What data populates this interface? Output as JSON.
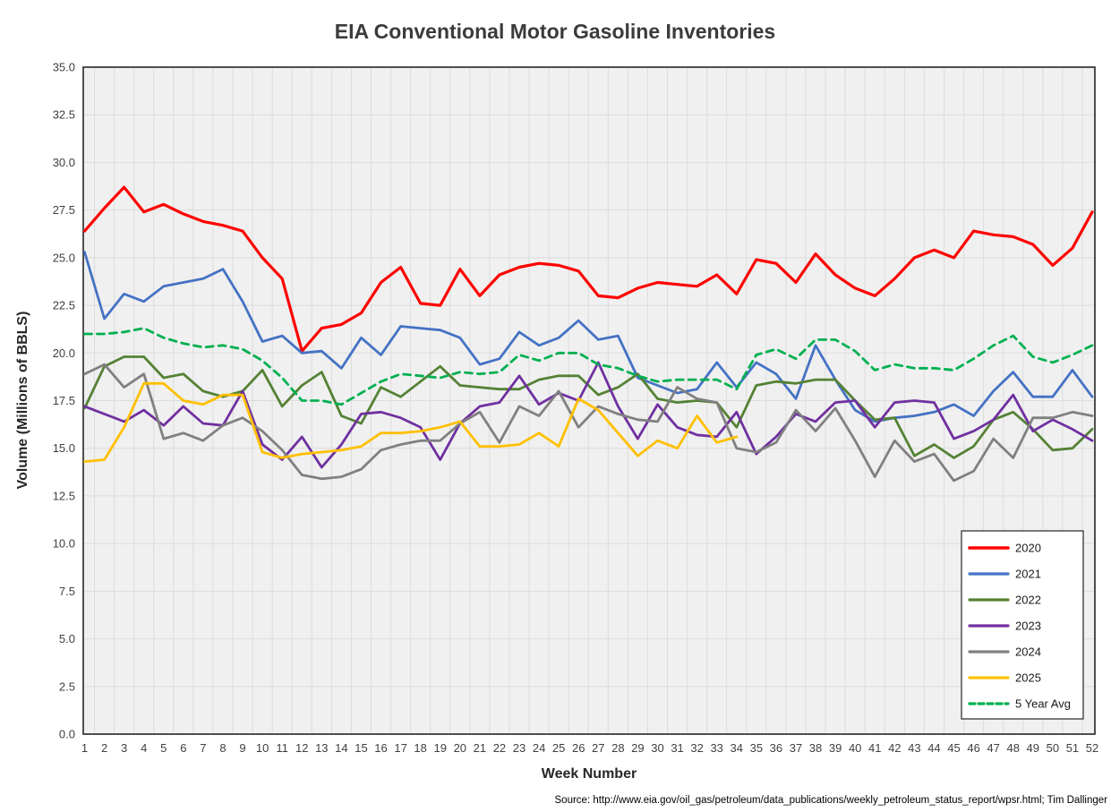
{
  "chart_data": {
    "type": "line",
    "title": "EIA Conventional Motor Gasoline Inventories",
    "xlabel": "Week Number",
    "ylabel": "Volume (Millions of BBLS)",
    "source_note": "Source: http://www.eia.gov/oil_gas/petroleum/data_publications/weekly_petroleum_status_report/wpsr.html; Tim Dallinger",
    "ylim": [
      0,
      35
    ],
    "ytick_step": 2.5,
    "ytick_decimals": 1,
    "weeks": [
      1,
      2,
      3,
      4,
      5,
      6,
      7,
      8,
      9,
      10,
      11,
      12,
      13,
      14,
      15,
      16,
      17,
      18,
      19,
      20,
      21,
      22,
      23,
      24,
      25,
      26,
      27,
      28,
      29,
      30,
      31,
      32,
      33,
      34,
      35,
      36,
      37,
      38,
      39,
      40,
      41,
      42,
      43,
      44,
      45,
      46,
      47,
      48,
      49,
      50,
      51,
      52
    ],
    "grid": "on",
    "legend_position": "inside-bottom-right",
    "series": [
      {
        "name": "2020",
        "color": "#FF0000",
        "dash": "solid",
        "width": 3.2,
        "values": [
          26.4,
          27.6,
          28.7,
          27.4,
          27.8,
          27.3,
          26.9,
          26.7,
          26.4,
          25.0,
          23.9,
          20.1,
          21.3,
          21.5,
          22.1,
          23.7,
          24.5,
          22.6,
          22.5,
          24.4,
          23.0,
          24.1,
          24.5,
          24.7,
          24.6,
          24.3,
          23.0,
          22.9,
          23.4,
          23.7,
          23.6,
          23.5,
          24.1,
          23.1,
          24.9,
          24.7,
          23.7,
          25.2,
          24.1,
          23.4,
          23.0,
          23.9,
          25.0,
          25.4,
          25.0,
          26.4,
          26.2,
          26.1,
          25.7,
          24.6,
          25.5,
          27.4
        ]
      },
      {
        "name": "2021",
        "color": "#4472C4",
        "dash": "solid",
        "width": 2.8,
        "values": [
          25.3,
          21.8,
          23.1,
          22.7,
          23.5,
          23.7,
          23.9,
          24.4,
          22.7,
          20.6,
          20.9,
          20.0,
          20.1,
          19.2,
          20.8,
          19.9,
          21.4,
          21.3,
          21.2,
          20.8,
          19.4,
          19.7,
          21.1,
          20.4,
          20.8,
          21.7,
          20.7,
          20.9,
          18.7,
          18.3,
          17.9,
          18.1,
          19.5,
          18.2,
          19.5,
          18.9,
          17.6,
          20.4,
          18.6,
          17.0,
          16.4,
          16.6,
          16.7,
          16.9,
          17.3,
          16.7,
          18.0,
          19.0,
          17.7,
          17.7,
          19.1,
          17.7
        ]
      },
      {
        "name": "2022",
        "color": "#548235",
        "dash": "solid",
        "width": 2.8,
        "values": [
          17.1,
          19.3,
          19.8,
          19.8,
          18.7,
          18.9,
          18.0,
          17.7,
          18.0,
          19.1,
          17.2,
          18.3,
          19.0,
          16.7,
          16.3,
          18.2,
          17.7,
          18.5,
          19.3,
          18.3,
          18.2,
          18.1,
          18.1,
          18.6,
          18.8,
          18.8,
          17.8,
          18.2,
          18.9,
          17.6,
          17.4,
          17.5,
          17.4,
          16.1,
          18.3,
          18.5,
          18.4,
          18.6,
          18.6,
          17.5,
          16.5,
          16.6,
          14.6,
          15.2,
          14.5,
          15.1,
          16.5,
          16.9,
          16.0,
          14.9,
          15.0,
          16.0
        ]
      },
      {
        "name": "2023",
        "color": "#7030A0",
        "dash": "solid",
        "width": 2.8,
        "values": [
          17.2,
          16.8,
          16.4,
          17.0,
          16.2,
          17.2,
          16.3,
          16.2,
          18.0,
          15.2,
          14.4,
          15.6,
          14.0,
          15.2,
          16.8,
          16.9,
          16.6,
          16.1,
          14.4,
          16.3,
          17.2,
          17.4,
          18.8,
          17.3,
          17.9,
          17.5,
          19.5,
          17.2,
          15.5,
          17.3,
          16.1,
          15.7,
          15.6,
          16.9,
          14.7,
          15.6,
          16.8,
          16.4,
          17.4,
          17.5,
          16.1,
          17.4,
          17.5,
          17.4,
          15.5,
          15.9,
          16.5,
          17.8,
          15.9,
          16.5,
          16.0,
          15.4
        ]
      },
      {
        "name": "2024",
        "color": "#808080",
        "dash": "solid",
        "width": 2.8,
        "values": [
          18.9,
          19.4,
          18.2,
          18.9,
          15.5,
          15.8,
          15.4,
          16.2,
          16.6,
          15.9,
          14.9,
          13.6,
          13.4,
          13.5,
          13.9,
          14.9,
          15.2,
          15.4,
          15.4,
          16.3,
          16.9,
          15.3,
          17.2,
          16.7,
          18.0,
          16.1,
          17.2,
          16.8,
          16.5,
          16.4,
          18.2,
          17.6,
          17.4,
          15.0,
          14.8,
          15.3,
          17.0,
          15.9,
          17.1,
          15.4,
          13.5,
          15.4,
          14.3,
          14.7,
          13.3,
          13.8,
          15.5,
          14.5,
          16.6,
          16.6,
          16.9,
          16.7
        ]
      },
      {
        "name": "2025",
        "color": "#FFC000",
        "dash": "solid",
        "width": 2.8,
        "values": [
          14.3,
          14.4,
          16.1,
          18.4,
          18.4,
          17.5,
          17.3,
          17.8,
          17.8,
          14.8,
          14.5,
          14.7,
          14.8,
          14.9,
          15.1,
          15.8,
          15.8,
          15.9,
          16.1,
          16.4,
          15.1,
          15.1,
          15.2,
          15.8,
          15.1,
          17.6,
          17.0,
          15.8,
          14.6,
          15.4,
          15.0,
          16.7,
          15.3,
          15.6
        ]
      },
      {
        "name": "5 Year Avg",
        "color": "#00B050",
        "dash": "dashed",
        "width": 2.8,
        "values": [
          21.0,
          21.0,
          21.1,
          21.3,
          20.8,
          20.5,
          20.3,
          20.4,
          20.2,
          19.6,
          18.7,
          17.5,
          17.5,
          17.3,
          17.9,
          18.5,
          18.9,
          18.8,
          18.7,
          19.0,
          18.9,
          19.0,
          19.9,
          19.6,
          20.0,
          20.0,
          19.4,
          19.2,
          18.8,
          18.5,
          18.6,
          18.6,
          18.6,
          18.1,
          19.9,
          20.2,
          19.7,
          20.7,
          20.7,
          20.1,
          19.1,
          19.4,
          19.2,
          19.2,
          19.1,
          19.7,
          20.4,
          20.9,
          19.8,
          19.5,
          19.9,
          20.4
        ]
      }
    ]
  },
  "style": {
    "plot_bg": "#F0F0F0",
    "page_bg": "#FFFFFF",
    "gridline_color": "#DCDCDC",
    "plot_border_color": "#262626",
    "tick_label_color": "#404040",
    "title_color": "#3B3B3B",
    "axis_title_color": "#262626",
    "source_color": "#000000",
    "legend_bg": "#FFFFFF",
    "legend_border": "#262626"
  }
}
